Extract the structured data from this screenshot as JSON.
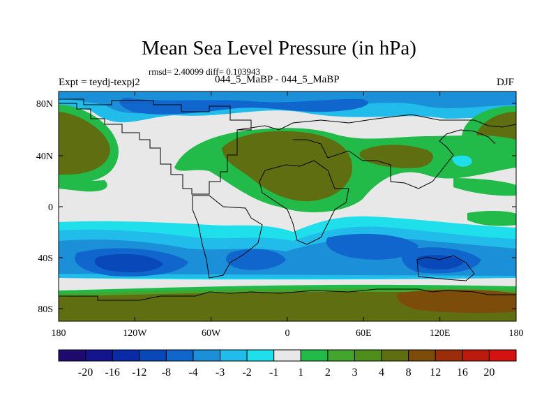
{
  "title": "Mean Sea Level Pressure (in hPa)",
  "stats": "rmsd= 2.40099 diff= 0.103943",
  "expt_label": "Expt = teydj-texpj2",
  "subtitle": "044_5_MaBP - 044_5_MaBP",
  "season": "DJF",
  "map": {
    "x_ticks": [
      "180",
      "120W",
      "60W",
      "0",
      "60E",
      "120E",
      "180"
    ],
    "y_ticks": [
      "80N",
      "40N",
      "0",
      "40S",
      "80S"
    ]
  },
  "legend": {
    "labels": [
      "-20",
      "-16",
      "-12",
      "-8",
      "-4",
      "-3",
      "-2",
      "-1",
      "1",
      "2",
      "3",
      "4",
      "8",
      "12",
      "16",
      "20"
    ],
    "colors": [
      "#1f0b6e",
      "#13138c",
      "#0a2aa7",
      "#0848b8",
      "#1066cc",
      "#1b8fd8",
      "#22bcea",
      "#1fe0ea",
      "#e8e8e8",
      "#22bb4a",
      "#43a42e",
      "#4e8c1c",
      "#5f6e10",
      "#7c4d0a",
      "#9b2d0a",
      "#bb1a0c",
      "#d4120f"
    ]
  }
}
